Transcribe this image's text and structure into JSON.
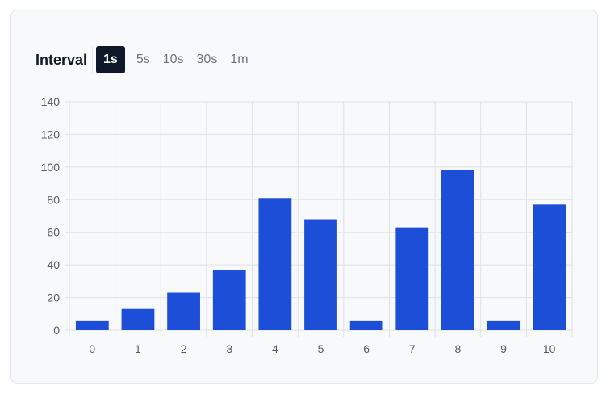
{
  "toolbar": {
    "label": "Interval",
    "options": [
      "1s",
      "5s",
      "10s",
      "30s",
      "1m"
    ],
    "selected": "1s"
  },
  "colors": {
    "bar": "#1d4ed8",
    "grid": "#dde1e6",
    "active_bg": "#0f172a"
  },
  "chart_data": {
    "type": "bar",
    "categories": [
      "0",
      "1",
      "2",
      "3",
      "4",
      "5",
      "6",
      "7",
      "8",
      "9",
      "10"
    ],
    "values": [
      6,
      13,
      23,
      37,
      81,
      68,
      6,
      63,
      98,
      6,
      77
    ],
    "ylim": [
      0,
      140
    ],
    "yticks": [
      0,
      20,
      40,
      60,
      80,
      100,
      120,
      140
    ],
    "grid": true,
    "title": "",
    "xlabel": "",
    "ylabel": ""
  }
}
